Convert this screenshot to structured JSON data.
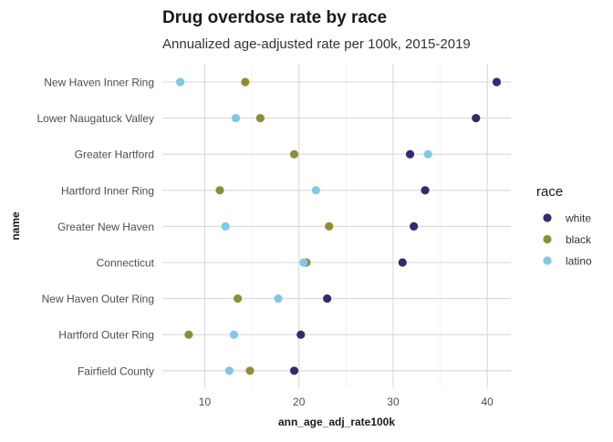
{
  "chart_data": {
    "type": "scatter",
    "title": "Drug overdose rate by race",
    "subtitle": "Annualized age-adjusted rate per 100k, 2015-2019",
    "xlabel": "ann_age_adj_rate100k",
    "ylabel": "name",
    "xlim": [
      5.5,
      42.5
    ],
    "xticks": [
      10,
      20,
      30,
      40
    ],
    "grid": true,
    "legend": {
      "title": "race",
      "placement": "right"
    },
    "categories": [
      "New Haven Inner Ring",
      "Lower Naugatuck Valley",
      "Greater Hartford",
      "Hartford Inner Ring",
      "Greater New Haven",
      "Connecticut",
      "New Haven Outer Ring",
      "Hartford Outer Ring",
      "Fairfield County"
    ],
    "series": [
      {
        "name": "white",
        "color": "#332b6e",
        "values": [
          41.0,
          38.8,
          31.8,
          33.4,
          32.2,
          31.0,
          23.0,
          20.2,
          19.5
        ]
      },
      {
        "name": "black",
        "color": "#8e8f35",
        "values": [
          14.3,
          15.9,
          19.5,
          11.6,
          23.2,
          20.8,
          13.5,
          8.3,
          14.8
        ]
      },
      {
        "name": "latino",
        "color": "#7fc8e8",
        "values": [
          7.4,
          13.3,
          33.7,
          21.8,
          12.2,
          20.5,
          17.8,
          13.1,
          12.6
        ]
      }
    ]
  }
}
